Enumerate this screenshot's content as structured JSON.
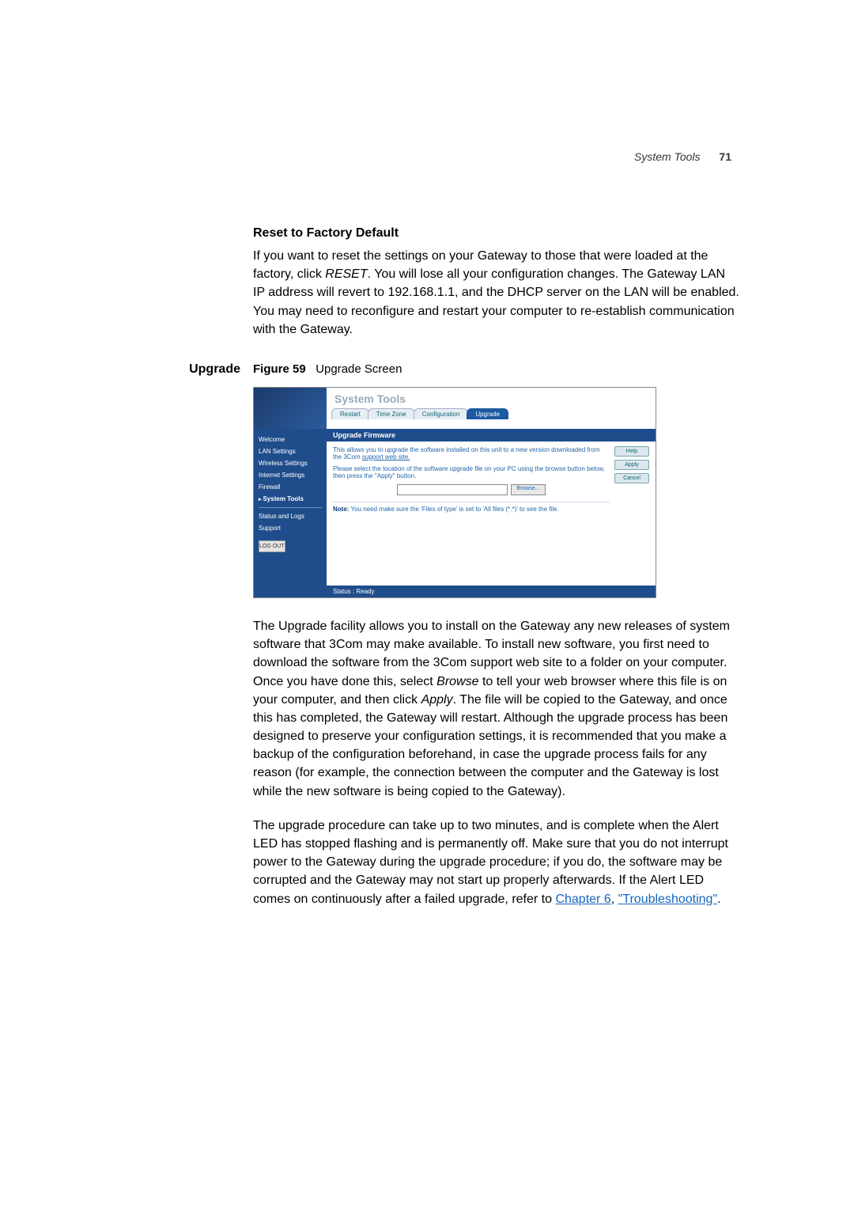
{
  "header": {
    "section": "System Tools",
    "page": "71"
  },
  "reset": {
    "heading": "Reset to Factory Default",
    "body_pre": "If you want to reset the settings on your Gateway to those that were loaded at the factory, click ",
    "body_reset": "RESET",
    "body_post": ". You will lose all your configuration changes. The Gateway LAN IP address will revert to 192.168.1.1, and the DHCP server on the LAN will be enabled. You may need to reconfigure and restart your computer to re-establish communication with the Gateway."
  },
  "upgrade": {
    "side_label": "Upgrade",
    "fig_label": "Figure 59",
    "fig_title": "Upgrade Screen",
    "para1_pre": "The Upgrade facility allows you to install on the Gateway any new releases of system software that 3Com may make available. To install new software, you first need to download the software from the 3Com support web site to a folder on your computer. Once you have done this, select ",
    "para1_browse": "Browse",
    "para1_mid": " to tell your web browser where this file is on your computer, and then click ",
    "para1_apply": "Apply",
    "para1_post": ". The file will be copied to the Gateway, and once this has completed, the Gateway will restart. Although the upgrade process has been designed to preserve your configuration settings, it is recommended that you make a backup of the configuration beforehand, in case the upgrade process fails for any reason (for example, the connection between the computer and the Gateway is lost while the new software is being copied to the Gateway).",
    "para2_pre": "The upgrade procedure can take up to two minutes, and is complete when the Alert LED has stopped flashing and is permanently off. Make sure that you do not interrupt power to the Gateway during the upgrade procedure; if you do, the software may be corrupted and the Gateway may not start up properly afterwards. If the Alert LED comes on continuously after a failed upgrade, refer to ",
    "para2_link1": "Chapter 6",
    "para2_mid": ", ",
    "para2_link2": "\"Troubleshooting\"",
    "para2_post": "."
  },
  "screenshot": {
    "title": "System Tools",
    "tabs": {
      "restart": "Restart",
      "timezone": "Time Zone",
      "config": "Configuration",
      "upgrade": "Upgrade"
    },
    "nav": {
      "welcome": "Welcome",
      "lan": "LAN Settings",
      "wireless": "Wireless Settings",
      "internet": "Internet Settings",
      "firewall": "Firewall",
      "system": "System Tools",
      "status": "Status and Logs",
      "support": "Support",
      "logout": "LOG OUT"
    },
    "bar": "Upgrade Firmware",
    "text1a": "This allows you to upgrade the software installed on this unit to a new version downloaded from the 3Com ",
    "text1b": "support web site.",
    "text2": "Please select the location of the software upgrade file on your PC using the browse button below, then press the \"Apply\" button.",
    "browse": "Browse...",
    "note_label": "Note:",
    "note_text": " You need make sure the 'Files of type' is set to 'All files (*.*)' to see the file.",
    "btns": {
      "help": "Help",
      "apply": "Apply",
      "cancel": "Cancel"
    },
    "status": "Status : Ready"
  }
}
